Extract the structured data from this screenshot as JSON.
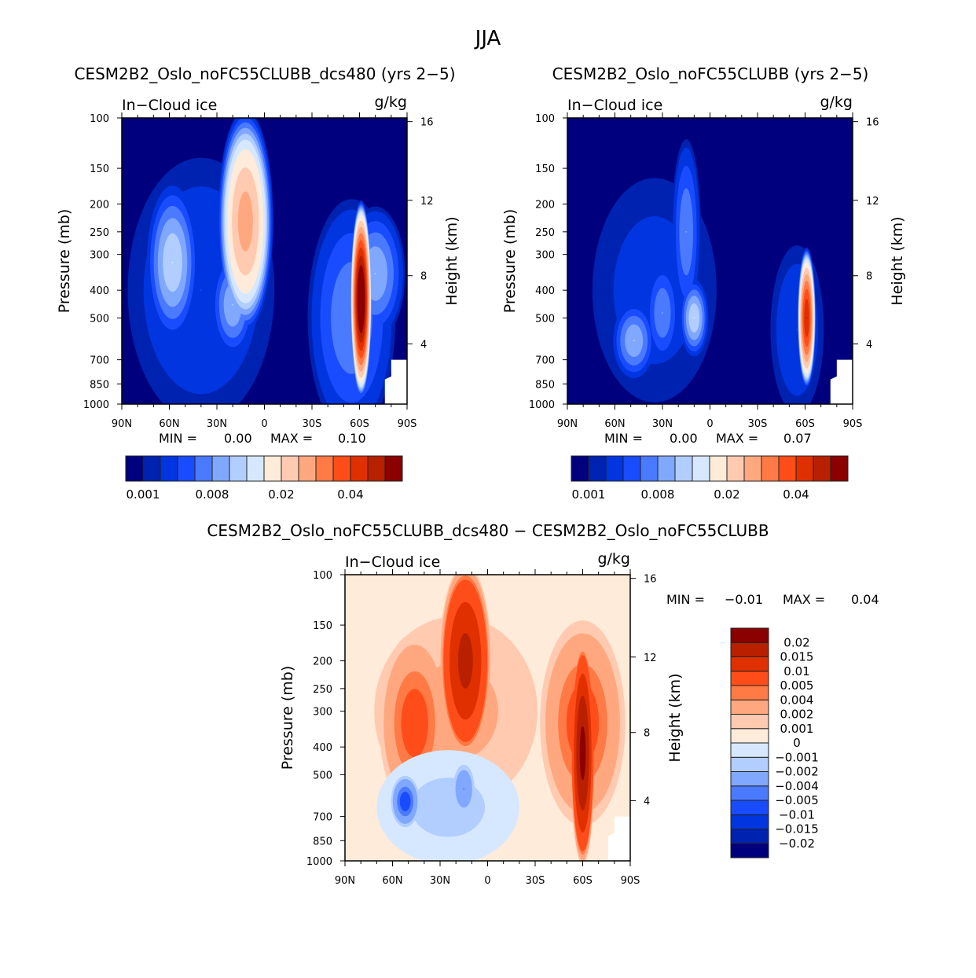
{
  "chart_data": {
    "type": "heatmap",
    "title": "JJA",
    "colors": [
      "#00007f",
      "#0022b0",
      "#0035e0",
      "#1a4cff",
      "#4a7aff",
      "#80a8ff",
      "#b2cdff",
      "#d6e8ff",
      "#ffebd9",
      "#ffcab0",
      "#ffa880",
      "#ff7a45",
      "#ff4d1a",
      "#e03000",
      "#b82000",
      "#8b0000"
    ],
    "panels": [
      {
        "id": "dcs480",
        "title": "CESM2B2_Oslo_noFC55CLUBB_dcs480 (yrs 2−5)",
        "left_label": "In−Cloud ice",
        "right_label": "g/kg",
        "ylabel": "Pressure (mb)",
        "y2label": "Height (km)",
        "min_label": "MIN =",
        "min_value": "0.00",
        "max_label": "MAX =",
        "max_value": "0.10",
        "levels": [
          0.001,
          0.002,
          0.004,
          0.006,
          0.008,
          0.01,
          0.012,
          0.015,
          0.02,
          0.025,
          0.03,
          0.035,
          0.04,
          0.045,
          0.05
        ],
        "colorbar_labels": [
          "0.001",
          "0.008",
          "0.02",
          "0.04"
        ],
        "background_class": 0,
        "features": [
          {
            "lat": 40,
            "p": 400,
            "dlat": 55,
            "dlogp": 0.55,
            "peak": 0.004
          },
          {
            "lat": -55,
            "p": 500,
            "dlat": 30,
            "dlogp": 0.45,
            "peak": 0.008
          },
          {
            "lat": 12,
            "p": 230,
            "dlat": 18,
            "dlogp": 0.4,
            "peak": 0.028
          },
          {
            "lat": 58,
            "p": 320,
            "dlat": 18,
            "dlogp": 0.3,
            "peak": 0.012
          },
          {
            "lat": 20,
            "p": 450,
            "dlat": 15,
            "dlogp": 0.2,
            "peak": 0.01
          },
          {
            "lat": -70,
            "p": 350,
            "dlat": 20,
            "dlogp": 0.25,
            "peak": 0.01
          },
          {
            "lat": -61,
            "p": 430,
            "dlat": 7,
            "dlogp": 0.35,
            "peak": 0.06
          }
        ]
      },
      {
        "id": "base",
        "title": "CESM2B2_Oslo_noFC55CLUBB (yrs 2−5)",
        "left_label": "In−Cloud ice",
        "right_label": "g/kg",
        "ylabel": "Pressure (mb)",
        "y2label": "Height (km)",
        "min_label": "MIN =",
        "min_value": "0.00",
        "max_label": "MAX =",
        "max_value": "0.07",
        "levels": [
          0.001,
          0.002,
          0.004,
          0.006,
          0.008,
          0.01,
          0.012,
          0.015,
          0.02,
          0.025,
          0.03,
          0.035,
          0.04,
          0.045,
          0.05
        ],
        "colorbar_labels": [
          "0.001",
          "0.008",
          "0.02",
          "0.04"
        ],
        "background_class": 0,
        "features": [
          {
            "lat": 35,
            "p": 400,
            "dlat": 50,
            "dlogp": 0.5,
            "peak": 0.003
          },
          {
            "lat": -55,
            "p": 550,
            "dlat": 20,
            "dlogp": 0.35,
            "peak": 0.004
          },
          {
            "lat": 15,
            "p": 250,
            "dlat": 10,
            "dlogp": 0.35,
            "peak": 0.008
          },
          {
            "lat": 10,
            "p": 500,
            "dlat": 10,
            "dlogp": 0.15,
            "peak": 0.012
          },
          {
            "lat": 48,
            "p": 600,
            "dlat": 15,
            "dlogp": 0.15,
            "peak": 0.01
          },
          {
            "lat": 30,
            "p": 480,
            "dlat": 12,
            "dlogp": 0.2,
            "peak": 0.008
          },
          {
            "lat": -61,
            "p": 500,
            "dlat": 6,
            "dlogp": 0.25,
            "peak": 0.045
          }
        ]
      },
      {
        "id": "diff",
        "title": "CESM2B2_Oslo_noFC55CLUBB_dcs480 − CESM2B2_Oslo_noFC55CLUBB",
        "left_label": "In−Cloud ice",
        "right_label": "g/kg",
        "ylabel": "Pressure (mb)",
        "y2label": "Height (km)",
        "min_label": "MIN =",
        "min_value": "−0.01",
        "max_label": "MAX =",
        "max_value": "0.04",
        "levels": [
          -0.02,
          -0.015,
          -0.01,
          -0.005,
          -0.004,
          -0.002,
          -0.001,
          0,
          0.001,
          0.002,
          0.004,
          0.005,
          0.01,
          0.015,
          0.02
        ],
        "colorbar_labels": [
          "−0.02",
          "−0.015",
          "−0.01",
          "−0.005",
          "−0.004",
          "−0.002",
          "−0.001",
          "0",
          "0.001",
          "0.002",
          "0.004",
          "0.005",
          "0.01",
          "0.015",
          "0.02"
        ],
        "background_class": 8,
        "features": [
          {
            "lat": 20,
            "p": 300,
            "dlat": 70,
            "dlogp": 0.45,
            "peak": 0.0025
          },
          {
            "lat": -60,
            "p": 330,
            "dlat": 30,
            "dlogp": 0.4,
            "peak": 0.006
          },
          {
            "lat": 46,
            "p": 330,
            "dlat": 25,
            "dlogp": 0.35,
            "peak": 0.006
          },
          {
            "lat": 14,
            "p": 200,
            "dlat": 17,
            "dlogp": 0.35,
            "peak": 0.017
          },
          {
            "lat": -60,
            "p": 420,
            "dlat": 8,
            "dlogp": 0.4,
            "peak": 0.022
          },
          {
            "lat": 25,
            "p": 650,
            "dlat": 45,
            "dlogp": 0.2,
            "peak": -0.0015
          },
          {
            "lat": 52,
            "p": 620,
            "dlat": 10,
            "dlogp": 0.1,
            "peak": -0.006
          },
          {
            "lat": 15,
            "p": 560,
            "dlat": 8,
            "dlogp": 0.1,
            "peak": -0.004
          }
        ]
      }
    ],
    "x_ticks": [
      "90N",
      "60N",
      "30N",
      "0",
      "30S",
      "60S",
      "90S"
    ],
    "x_values": [
      90,
      60,
      30,
      0,
      -30,
      -60,
      -90
    ],
    "p_ticks": [
      100,
      150,
      200,
      250,
      300,
      400,
      500,
      700,
      850,
      1000
    ],
    "h_ticks": [
      16,
      12,
      8,
      4
    ],
    "h_pressure": [
      103,
      194,
      356,
      616
    ],
    "ylim": [
      1000,
      100
    ]
  }
}
